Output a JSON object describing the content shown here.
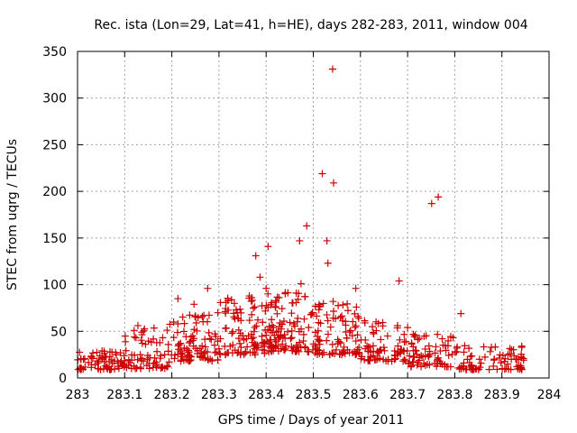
{
  "chart_data": {
    "type": "scatter",
    "title": "Rec. ista (Lon=29, Lat=41, h=HE), days 282-283, 2011, window 004",
    "xlabel": "GPS time / Days of year 2011",
    "ylabel": "STEC from uqrg / TECUs",
    "xlim": [
      283,
      284
    ],
    "ylim": [
      0,
      350
    ],
    "x_ticks": [
      "283",
      "283.1",
      "283.2",
      "283.3",
      "283.4",
      "283.5",
      "283.6",
      "283.7",
      "283.8",
      "283.9",
      "284"
    ],
    "y_ticks": [
      "0",
      "50",
      "100",
      "150",
      "200",
      "250",
      "300",
      "350"
    ],
    "x_tick_values": [
      283,
      283.1,
      283.2,
      283.3,
      283.4,
      283.5,
      283.6,
      283.7,
      283.8,
      283.9,
      284
    ],
    "y_tick_values": [
      0,
      50,
      100,
      150,
      200,
      250,
      300,
      350
    ],
    "grid": true,
    "marker": "plus",
    "marker_color": "#cc0000",
    "outliers": [
      {
        "x": 283.541,
        "y": 331
      },
      {
        "x": 283.519,
        "y": 219
      },
      {
        "x": 283.543,
        "y": 209
      },
      {
        "x": 283.751,
        "y": 187
      },
      {
        "x": 283.765,
        "y": 194
      },
      {
        "x": 283.486,
        "y": 163
      },
      {
        "x": 283.471,
        "y": 147
      },
      {
        "x": 283.529,
        "y": 147
      },
      {
        "x": 283.404,
        "y": 141
      },
      {
        "x": 283.378,
        "y": 131
      },
      {
        "x": 283.531,
        "y": 123
      },
      {
        "x": 283.387,
        "y": 108
      },
      {
        "x": 283.682,
        "y": 104
      },
      {
        "x": 283.474,
        "y": 101
      },
      {
        "x": 283.4,
        "y": 96
      },
      {
        "x": 283.59,
        "y": 96
      },
      {
        "x": 283.276,
        "y": 96
      },
      {
        "x": 283.213,
        "y": 85
      },
      {
        "x": 283.319,
        "y": 83
      },
      {
        "x": 283.542,
        "y": 82
      },
      {
        "x": 283.813,
        "y": 69
      },
      {
        "x": 283.247,
        "y": 79
      },
      {
        "x": 283.7,
        "y": 54
      }
    ],
    "clusters": [
      {
        "x": [
          283.0,
          283.1
        ],
        "y": [
          9,
          30
        ],
        "n": 70
      },
      {
        "x": [
          283.1,
          283.2
        ],
        "y": [
          10,
          58
        ],
        "n": 70
      },
      {
        "x": [
          283.2,
          283.3
        ],
        "y": [
          18,
          70
        ],
        "n": 90
      },
      {
        "x": [
          283.3,
          283.4
        ],
        "y": [
          25,
          88
        ],
        "n": 95
      },
      {
        "x": [
          283.4,
          283.5
        ],
        "y": [
          28,
          92
        ],
        "n": 110
      },
      {
        "x": [
          283.5,
          283.6
        ],
        "y": [
          25,
          80
        ],
        "n": 90
      },
      {
        "x": [
          283.6,
          283.7
        ],
        "y": [
          18,
          62
        ],
        "n": 75
      },
      {
        "x": [
          283.7,
          283.8
        ],
        "y": [
          12,
          48
        ],
        "n": 70
      },
      {
        "x": [
          283.8,
          283.95
        ],
        "y": [
          9,
          35
        ],
        "n": 85
      }
    ]
  }
}
